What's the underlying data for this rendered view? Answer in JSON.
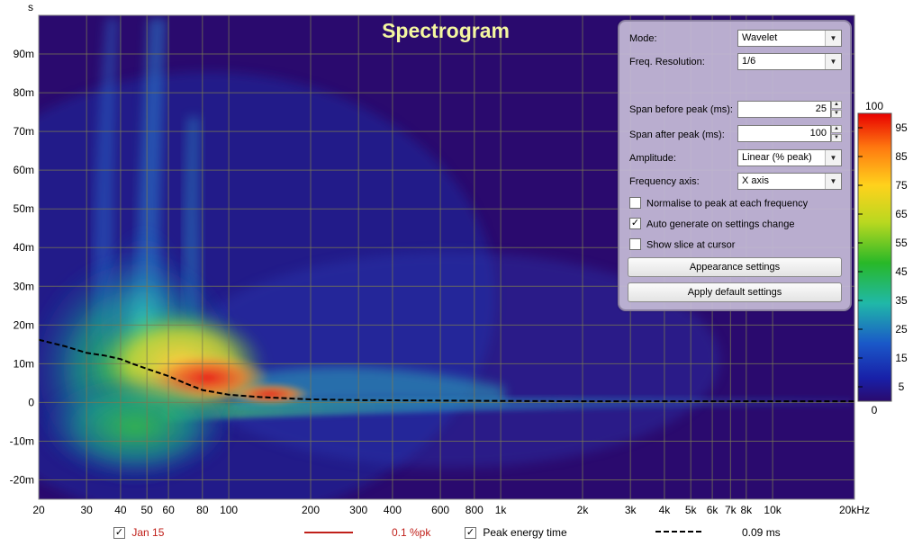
{
  "chart_data": {
    "type": "heatmap",
    "title": "Spectrogram",
    "ylabel": "s",
    "xlabel": "",
    "x_scale": "log",
    "xlim_hz": [
      20,
      20000
    ],
    "ylim_s": [
      -0.025,
      0.1
    ],
    "x_ticks": [
      {
        "value": 20,
        "label": "20"
      },
      {
        "value": 30,
        "label": "30"
      },
      {
        "value": 40,
        "label": "40"
      },
      {
        "value": 50,
        "label": "50"
      },
      {
        "value": 60,
        "label": "60"
      },
      {
        "value": 80,
        "label": "80"
      },
      {
        "value": 100,
        "label": "100"
      },
      {
        "value": 200,
        "label": "200"
      },
      {
        "value": 300,
        "label": "300"
      },
      {
        "value": 400,
        "label": "400"
      },
      {
        "value": 600,
        "label": "600"
      },
      {
        "value": 800,
        "label": "800"
      },
      {
        "value": 1000,
        "label": "1k"
      },
      {
        "value": 2000,
        "label": "2k"
      },
      {
        "value": 3000,
        "label": "3k"
      },
      {
        "value": 4000,
        "label": "4k"
      },
      {
        "value": 5000,
        "label": "5k"
      },
      {
        "value": 6000,
        "label": "6k"
      },
      {
        "value": 7000,
        "label": "7k"
      },
      {
        "value": 8000,
        "label": "8k"
      },
      {
        "value": 10000,
        "label": "10k"
      },
      {
        "value": 20000,
        "label": "20kHz"
      }
    ],
    "y_ticks": [
      {
        "value": 0.09,
        "label": "90m"
      },
      {
        "value": 0.08,
        "label": "80m"
      },
      {
        "value": 0.07,
        "label": "70m"
      },
      {
        "value": 0.06,
        "label": "60m"
      },
      {
        "value": 0.05,
        "label": "50m"
      },
      {
        "value": 0.04,
        "label": "40m"
      },
      {
        "value": 0.03,
        "label": "30m"
      },
      {
        "value": 0.02,
        "label": "20m"
      },
      {
        "value": 0.01,
        "label": "10m"
      },
      {
        "value": 0,
        "label": "0"
      },
      {
        "value": -0.01,
        "label": "-10m"
      },
      {
        "value": -0.02,
        "label": "-20m"
      }
    ],
    "grid": true,
    "colorbar": {
      "min": 0,
      "max": 100,
      "min_label": "0",
      "max_label": "100",
      "ticks": [
        95,
        85,
        75,
        65,
        55,
        45,
        35,
        25,
        15,
        5
      ],
      "unit": "Linear (% peak)"
    },
    "series": [
      {
        "name": "Peak energy time",
        "style": "dashed",
        "color": "#000000",
        "points": [
          [
            20,
            0.0162
          ],
          [
            25,
            0.0145
          ],
          [
            30,
            0.0128
          ],
          [
            35,
            0.0121
          ],
          [
            40,
            0.0112
          ],
          [
            45,
            0.0098
          ],
          [
            50,
            0.0087
          ],
          [
            60,
            0.0068
          ],
          [
            70,
            0.0048
          ],
          [
            80,
            0.0032
          ],
          [
            100,
            0.002
          ],
          [
            130,
            0.0014
          ],
          [
            200,
            0.0008
          ],
          [
            300,
            0.0006
          ],
          [
            500,
            0.0005
          ],
          [
            1000,
            0.0004
          ],
          [
            2000,
            0.0003
          ],
          [
            5000,
            0.0003
          ],
          [
            10000,
            0.0003
          ],
          [
            20000,
            0.0003
          ]
        ]
      }
    ],
    "energy_ridge_time_s": [
      [
        20,
        0.006
      ],
      [
        30,
        0.0075
      ],
      [
        40,
        0.0085
      ],
      [
        60,
        0.0075
      ],
      [
        80,
        0.006
      ],
      [
        100,
        0.004
      ],
      [
        150,
        0.003
      ],
      [
        200,
        0.002
      ],
      [
        400,
        0.001
      ],
      [
        1000,
        0.0005
      ],
      [
        20000,
        0.0003
      ]
    ],
    "colors": {
      "background": "#2a0a6e",
      "grid": "#7a7a52",
      "title": "#f4f7a0",
      "ridge_peak": "#e8201a"
    }
  },
  "settings_panel": {
    "mode_label": "Mode:",
    "mode_value": "Wavelet",
    "freq_res_label": "Freq. Resolution:",
    "freq_res_value": "1/6",
    "span_before_label": "Span before peak (ms):",
    "span_before_value": "25",
    "span_after_label": "Span after peak (ms):",
    "span_after_value": "100",
    "amplitude_label": "Amplitude:",
    "amplitude_value": "Linear (% peak)",
    "freq_axis_label": "Frequency axis:",
    "freq_axis_value": "X axis",
    "normalise_label": "Normalise to peak at each frequency",
    "normalise_checked": false,
    "autogen_label": "Auto generate on settings change",
    "autogen_checked": true,
    "slice_label": "Show slice at cursor",
    "slice_checked": false,
    "appearance_btn": "Appearance settings",
    "apply_default_btn": "Apply default settings"
  },
  "footer": {
    "series1_label": "Jan 15",
    "series1_color": "#c0201a",
    "series1_value": "0.1 %pk",
    "peak_label": "Peak energy time",
    "peak_value": "0.09 ms"
  }
}
